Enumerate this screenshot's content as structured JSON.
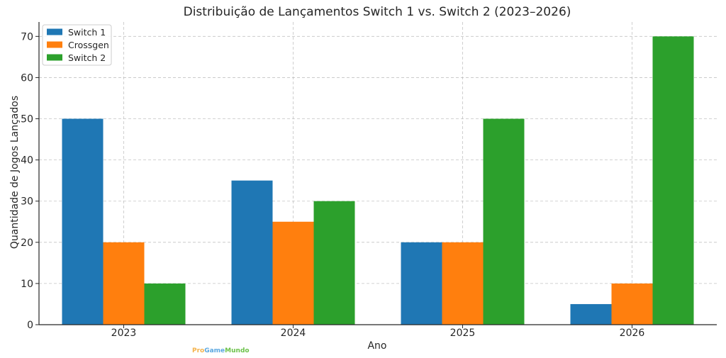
{
  "chart_data": {
    "type": "bar",
    "title": "Distribuição de Lançamentos Switch 1 vs. Switch 2 (2023–2026)",
    "xlabel": "Ano",
    "ylabel": "Quantidade de Jogos Lançados",
    "categories": [
      "2023",
      "2024",
      "2025",
      "2026"
    ],
    "series": [
      {
        "name": "Switch 1",
        "color": "#1f77b4",
        "values": [
          50,
          35,
          20,
          5
        ]
      },
      {
        "name": "Crossgen",
        "color": "#ff7f0e",
        "values": [
          20,
          25,
          20,
          10
        ]
      },
      {
        "name": "Switch 2",
        "color": "#2ca02c",
        "values": [
          10,
          30,
          50,
          70
        ]
      }
    ],
    "ylim": [
      0,
      73.5
    ],
    "yticks": [
      0,
      10,
      20,
      30,
      40,
      50,
      60,
      70
    ],
    "grid": true,
    "legend_position": "top-left"
  },
  "watermark": {
    "pro": "Pro",
    "game": "Game",
    "mundo": "Mundo",
    "colors": {
      "pro": "#f4b24a",
      "game": "#5aa7e0",
      "mundo": "#6cc24a"
    }
  }
}
